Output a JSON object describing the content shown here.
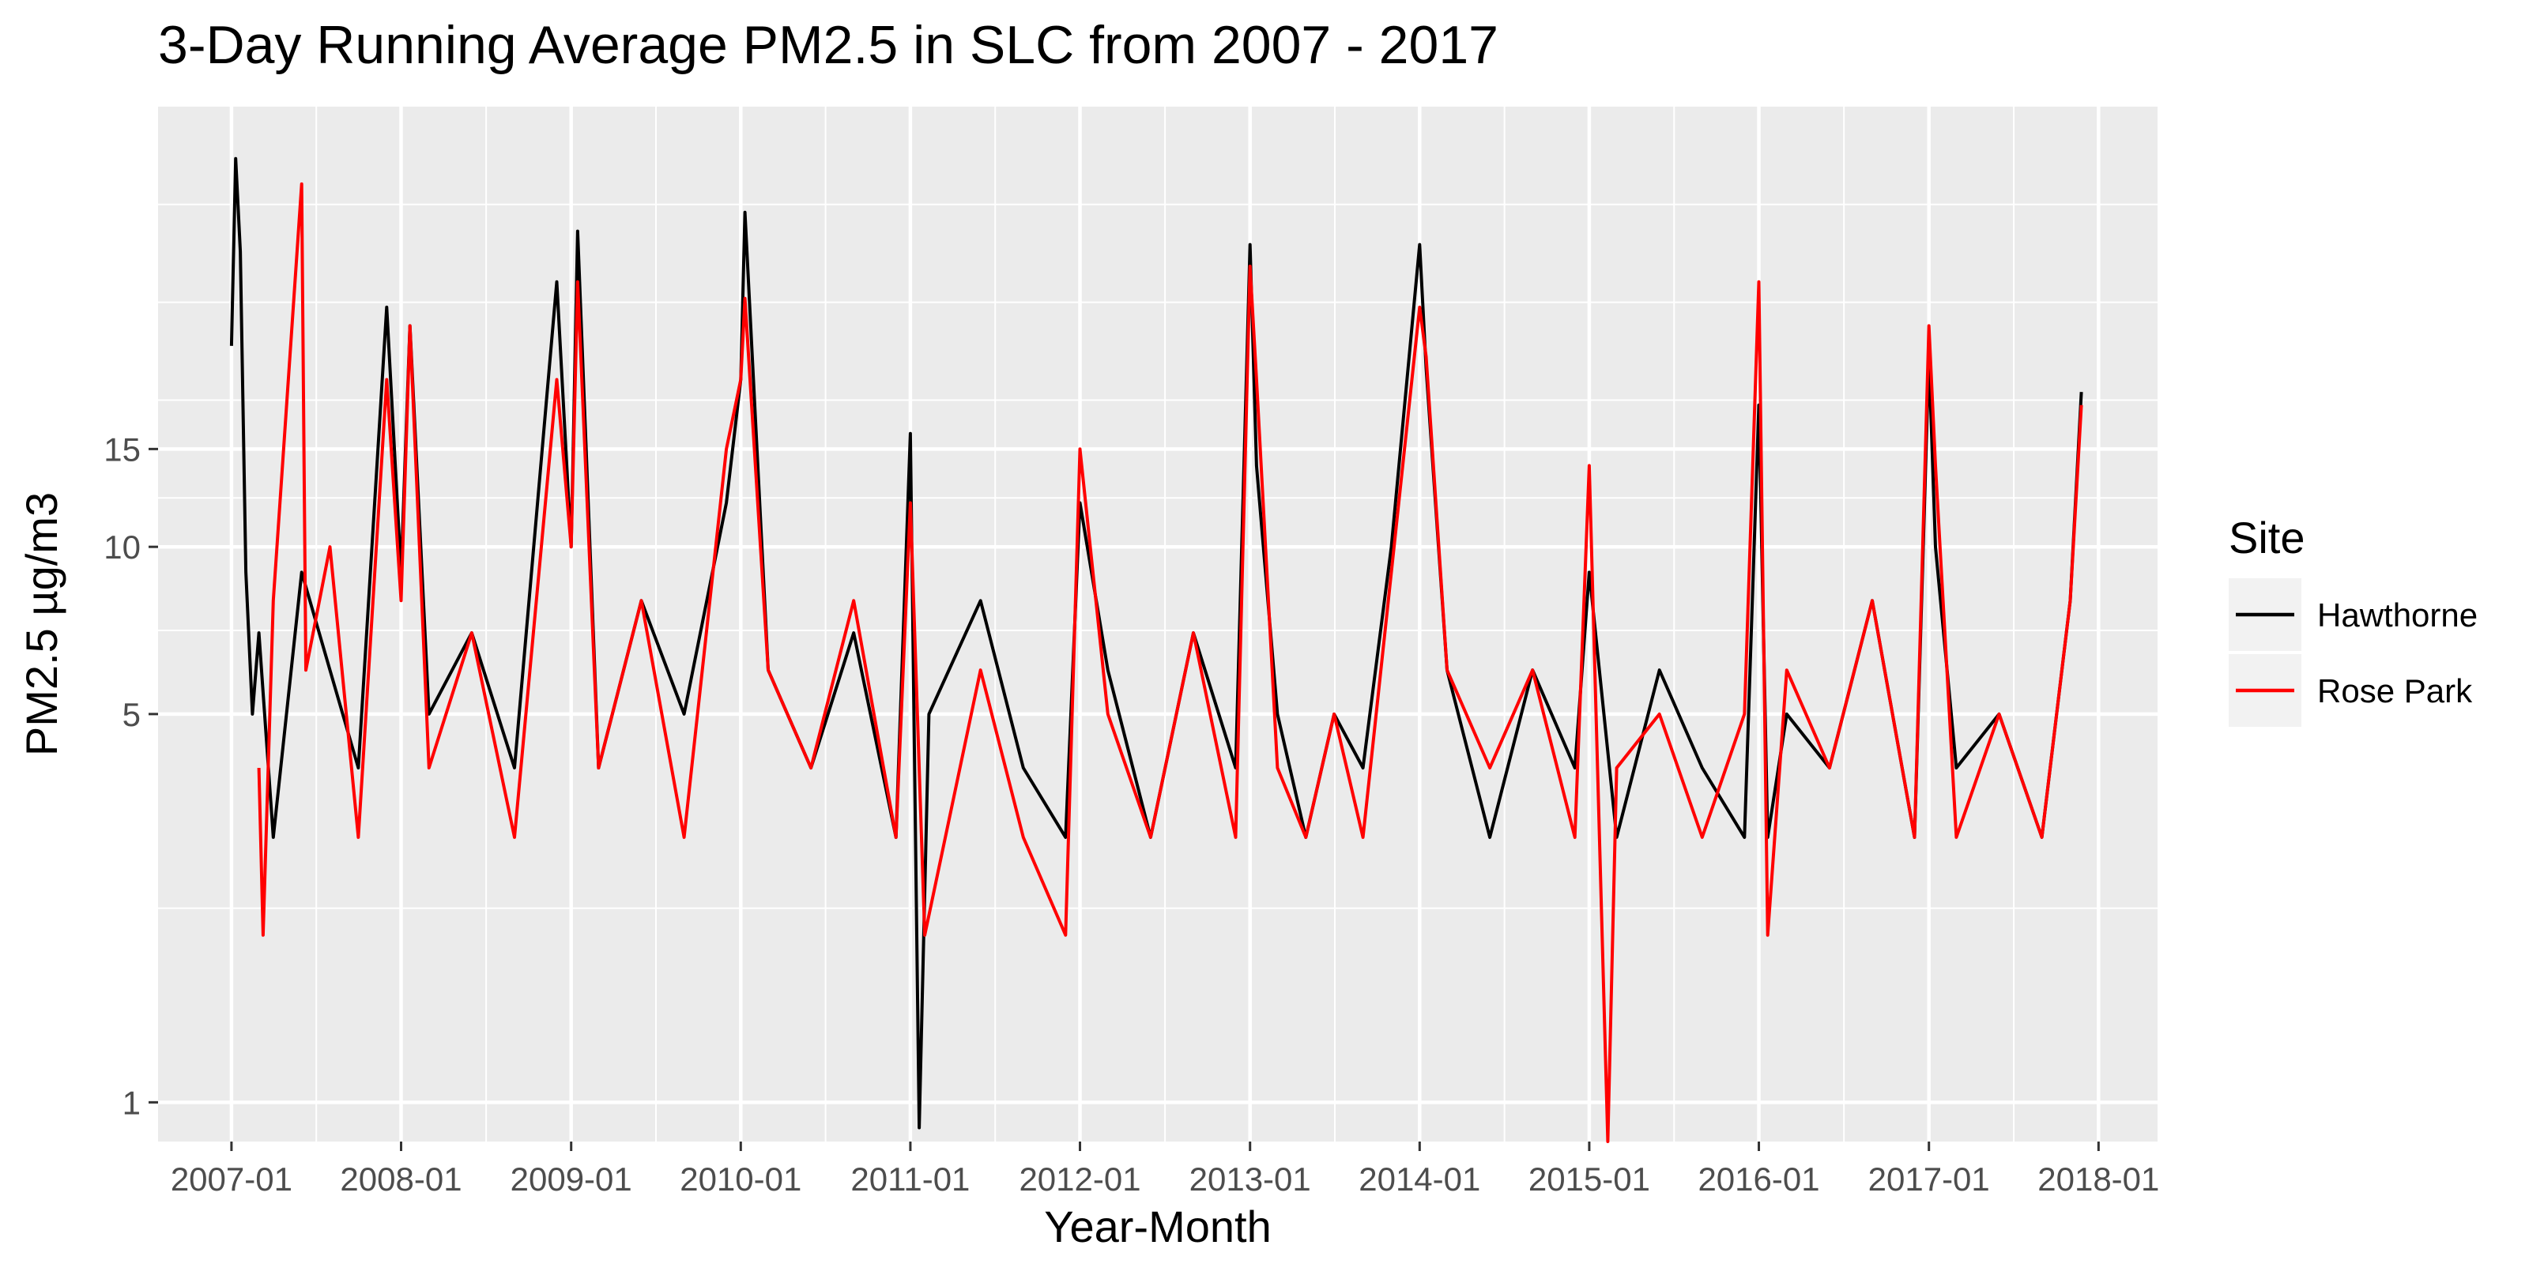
{
  "chart_data": {
    "type": "line",
    "title": "3-Day Running Average PM2.5 in SLC from 2007 - 2017",
    "xlabel": "Year-Month",
    "ylabel": "PM2.5 µg/m3",
    "y_scale": "log",
    "ylim": [
      0.85,
      62
    ],
    "xlim": [
      "2006-07-27",
      "2018-05-08"
    ],
    "x_ticks": [
      "2007-01",
      "2008-01",
      "2009-01",
      "2010-01",
      "2011-01",
      "2012-01",
      "2013-01",
      "2014-01",
      "2015-01",
      "2016-01",
      "2017-01",
      "2018-01"
    ],
    "y_ticks": [
      1,
      5,
      10,
      15
    ],
    "grid": true,
    "legend": {
      "title": "Site",
      "position": "right"
    },
    "series": [
      {
        "name": "Hawthorne",
        "color": "#000000",
        "x": [
          "2007-01-01",
          "2007-01-10",
          "2007-01-20",
          "2007-02-01",
          "2007-02-15",
          "2007-03-01",
          "2007-04-01",
          "2007-06-01",
          "2007-08-01",
          "2007-10-01",
          "2007-12-01",
          "2008-01-01",
          "2008-01-20",
          "2008-03-01",
          "2008-06-01",
          "2008-09-01",
          "2008-12-01",
          "2009-01-01",
          "2009-01-15",
          "2009-03-01",
          "2009-06-01",
          "2009-09-01",
          "2009-12-01",
          "2010-01-01",
          "2010-01-10",
          "2010-03-01",
          "2010-06-01",
          "2010-09-01",
          "2010-12-01",
          "2011-01-01",
          "2011-01-20",
          "2011-02-10",
          "2011-06-01",
          "2011-09-01",
          "2011-12-01",
          "2012-01-01",
          "2012-03-01",
          "2012-06-01",
          "2012-09-01",
          "2012-12-01",
          "2013-01-01",
          "2013-01-15",
          "2013-03-01",
          "2013-05-01",
          "2013-07-01",
          "2013-09-01",
          "2013-11-01",
          "2014-01-01",
          "2014-01-15",
          "2014-03-01",
          "2014-06-01",
          "2014-09-01",
          "2014-12-01",
          "2015-01-01",
          "2015-03-01",
          "2015-06-01",
          "2015-09-01",
          "2015-12-01",
          "2016-01-01",
          "2016-01-20",
          "2016-03-01",
          "2016-06-01",
          "2016-09-01",
          "2016-12-01",
          "2017-01-01",
          "2017-01-15",
          "2017-03-01",
          "2017-06-01",
          "2017-09-01",
          "2017-11-01",
          "2017-11-25"
        ],
        "values": [
          23,
          50,
          34,
          9,
          5,
          7,
          3,
          9,
          6,
          4,
          27,
          9,
          25,
          5,
          7,
          4,
          30,
          10,
          37,
          4,
          8,
          5,
          12,
          20,
          40,
          6,
          4,
          7,
          3,
          16,
          0.9,
          5,
          8,
          4,
          3,
          12,
          6,
          3,
          7,
          4,
          35,
          14,
          5,
          3,
          5,
          4,
          10,
          35,
          21,
          6,
          3,
          6,
          4,
          9,
          3,
          6,
          4,
          3,
          18,
          3,
          5,
          4,
          8,
          3,
          22,
          10,
          4,
          5,
          3,
          8,
          19
        ]
      },
      {
        "name": "Rose Park",
        "color": "#ff0000",
        "x": [
          "2007-03-01",
          "2007-03-10",
          "2007-04-01",
          "2007-06-01",
          "2007-06-10",
          "2007-08-01",
          "2007-10-01",
          "2007-12-01",
          "2008-01-01",
          "2008-01-20",
          "2008-03-01",
          "2008-06-01",
          "2008-09-01",
          "2008-12-01",
          "2009-01-01",
          "2009-01-15",
          "2009-03-01",
          "2009-06-01",
          "2009-09-01",
          "2009-12-01",
          "2010-01-01",
          "2010-01-10",
          "2010-03-01",
          "2010-06-01",
          "2010-09-01",
          "2010-12-01",
          "2011-01-01",
          "2011-02-01",
          "2011-06-01",
          "2011-09-01",
          "2011-12-01",
          "2012-01-01",
          "2012-03-01",
          "2012-06-01",
          "2012-09-01",
          "2012-12-01",
          "2013-01-01",
          "2013-01-15",
          "2013-03-01",
          "2013-05-01",
          "2013-07-01",
          "2013-09-01",
          "2013-11-01",
          "2014-01-01",
          "2014-01-15",
          "2014-03-01",
          "2014-06-01",
          "2014-09-01",
          "2014-12-01",
          "2015-01-01",
          "2015-02-10",
          "2015-03-01",
          "2015-06-01",
          "2015-09-01",
          "2015-12-01",
          "2016-01-01",
          "2016-01-20",
          "2016-03-01",
          "2016-06-01",
          "2016-09-01",
          "2016-12-01",
          "2017-01-01",
          "2017-01-15",
          "2017-03-01",
          "2017-06-01",
          "2017-09-01",
          "2017-11-01",
          "2017-11-25"
        ],
        "values": [
          4,
          2,
          8,
          45,
          6,
          10,
          3,
          20,
          8,
          25,
          4,
          7,
          3,
          20,
          10,
          30,
          4,
          8,
          3,
          15,
          20,
          28,
          6,
          4,
          8,
          3,
          12,
          2,
          6,
          3,
          2,
          15,
          5,
          3,
          7,
          3,
          32,
          20,
          4,
          3,
          5,
          3,
          9,
          27,
          22,
          6,
          4,
          6,
          3,
          14,
          0.85,
          4,
          5,
          3,
          5,
          30,
          2,
          6,
          4,
          8,
          3,
          25,
          14,
          3,
          5,
          3,
          8,
          18
        ]
      }
    ]
  }
}
